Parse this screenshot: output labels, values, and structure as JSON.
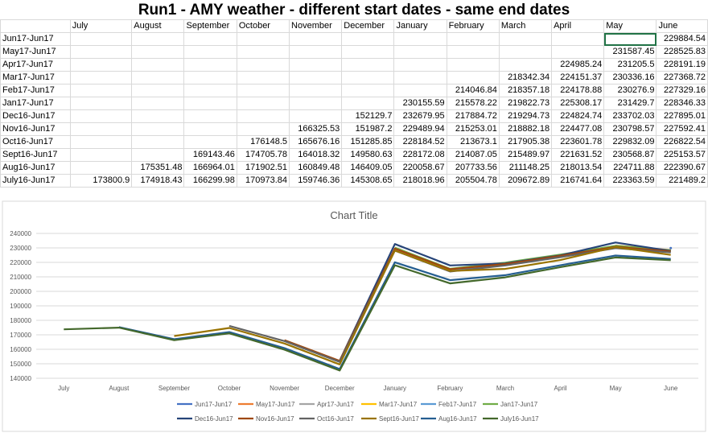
{
  "sheet": {
    "title": "Run1 - AMY weather - different start dates - same end dates",
    "column_headers": [
      "",
      "July",
      "August",
      "September",
      "October",
      "November",
      "December",
      "January",
      "February",
      "March",
      "April",
      "May",
      "June"
    ],
    "rows": [
      {
        "label": "Jun17-Jun17",
        "cells": [
          "",
          "",
          "",
          "",
          "",
          "",
          "",
          "",
          "",
          "",
          "",
          "229884.54"
        ]
      },
      {
        "label": "May17-Jun17",
        "cells": [
          "",
          "",
          "",
          "",
          "",
          "",
          "",
          "",
          "",
          "",
          "231587.45",
          "228525.83"
        ]
      },
      {
        "label": "Apr17-Jun17",
        "cells": [
          "",
          "",
          "",
          "",
          "",
          "",
          "",
          "",
          "",
          "224985.24",
          "231205.5",
          "228191.19"
        ]
      },
      {
        "label": "Mar17-Jun17",
        "cells": [
          "",
          "",
          "",
          "",
          "",
          "",
          "",
          "",
          "218342.34",
          "224151.37",
          "230336.16",
          "227368.72"
        ]
      },
      {
        "label": "Feb17-Jun17",
        "cells": [
          "",
          "",
          "",
          "",
          "",
          "",
          "",
          "214046.84",
          "218357.18",
          "224178.88",
          "230276.9",
          "227329.16"
        ]
      },
      {
        "label": "Jan17-Jun17",
        "cells": [
          "",
          "",
          "",
          "",
          "",
          "",
          "230155.59",
          "215578.22",
          "219822.73",
          "225308.17",
          "231429.7",
          "228346.33"
        ]
      },
      {
        "label": "Dec16-Jun17",
        "cells": [
          "",
          "",
          "",
          "",
          "",
          "152129.7",
          "232679.95",
          "217884.72",
          "219294.73",
          "224824.74",
          "233702.03",
          "227895.01"
        ]
      },
      {
        "label": "Nov16-Jun17",
        "cells": [
          "",
          "",
          "",
          "",
          "166325.53",
          "151987.2",
          "229489.94",
          "215253.01",
          "218882.18",
          "224477.08",
          "230798.57",
          "227592.41"
        ]
      },
      {
        "label": "Oct16-Jun17",
        "cells": [
          "",
          "",
          "",
          "176148.5",
          "165676.16",
          "151285.85",
          "228184.52",
          "213673.1",
          "217905.38",
          "223601.78",
          "229832.09",
          "226822.54"
        ]
      },
      {
        "label": "Sept16-Jun17",
        "cells": [
          "",
          "",
          "169143.46",
          "174705.78",
          "164018.32",
          "149580.63",
          "228172.08",
          "214087.05",
          "215489.97",
          "221631.52",
          "230568.87",
          "225153.57"
        ]
      },
      {
        "label": "Aug16-Jun17",
        "cells": [
          "",
          "175351.48",
          "166964.01",
          "171902.51",
          "160849.48",
          "146409.05",
          "220058.67",
          "207733.56",
          "211148.25",
          "218013.54",
          "224711.88",
          "222390.67"
        ]
      },
      {
        "label": "July16-Jun17",
        "cells": [
          "173800.9",
          "174918.43",
          "166299.98",
          "170973.84",
          "159746.36",
          "145308.65",
          "218018.96",
          "205504.78",
          "209672.89",
          "216741.64",
          "223363.59",
          "221489.2"
        ]
      }
    ]
  },
  "chart_data": {
    "type": "line",
    "title": "Chart Title",
    "xlabel": "",
    "ylabel": "",
    "ylim": [
      140000,
      240000
    ],
    "yticks": [
      "140000",
      "150000",
      "160000",
      "170000",
      "180000",
      "190000",
      "200000",
      "210000",
      "220000",
      "230000",
      "240000"
    ],
    "grid": true,
    "legend_position": "bottom",
    "categories": [
      "July",
      "August",
      "September",
      "October",
      "November",
      "December",
      "January",
      "February",
      "March",
      "April",
      "May",
      "June"
    ],
    "series": [
      {
        "name": "Jun17-Jun17",
        "color": "#4472c4",
        "values": [
          null,
          null,
          null,
          null,
          null,
          null,
          null,
          null,
          null,
          null,
          null,
          229884.54
        ]
      },
      {
        "name": "May17-Jun17",
        "color": "#ed7d31",
        "values": [
          null,
          null,
          null,
          null,
          null,
          null,
          null,
          null,
          null,
          null,
          231587.45,
          228525.83
        ]
      },
      {
        "name": "Apr17-Jun17",
        "color": "#a5a5a5",
        "values": [
          null,
          null,
          null,
          null,
          null,
          null,
          null,
          null,
          null,
          224985.24,
          231205.5,
          228191.19
        ]
      },
      {
        "name": "Mar17-Jun17",
        "color": "#ffc000",
        "values": [
          null,
          null,
          null,
          null,
          null,
          null,
          null,
          null,
          218342.34,
          224151.37,
          230336.16,
          227368.72
        ]
      },
      {
        "name": "Feb17-Jun17",
        "color": "#5b9bd5",
        "values": [
          null,
          null,
          null,
          null,
          null,
          null,
          null,
          214046.84,
          218357.18,
          224178.88,
          230276.9,
          227329.16
        ]
      },
      {
        "name": "Jan17-Jun17",
        "color": "#70ad47",
        "values": [
          null,
          null,
          null,
          null,
          null,
          null,
          230155.59,
          215578.22,
          219822.73,
          225308.17,
          231429.7,
          228346.33
        ]
      },
      {
        "name": "Dec16-Jun17",
        "color": "#264478",
        "values": [
          null,
          null,
          null,
          null,
          null,
          152129.7,
          232679.95,
          217884.72,
          219294.73,
          224824.74,
          233702.03,
          227895.01
        ]
      },
      {
        "name": "Nov16-Jun17",
        "color": "#9e480e",
        "values": [
          null,
          null,
          null,
          null,
          166325.53,
          151987.2,
          229489.94,
          215253.01,
          218882.18,
          224477.08,
          230798.57,
          227592.41
        ]
      },
      {
        "name": "Oct16-Jun17",
        "color": "#636363",
        "values": [
          null,
          null,
          null,
          176148.5,
          165676.16,
          151285.85,
          228184.52,
          213673.1,
          217905.38,
          223601.78,
          229832.09,
          226822.54
        ]
      },
      {
        "name": "Sept16-Jun17",
        "color": "#997300",
        "values": [
          null,
          null,
          169143.46,
          174705.78,
          164018.32,
          149580.63,
          228172.08,
          214087.05,
          215489.97,
          221631.52,
          230568.87,
          225153.57
        ]
      },
      {
        "name": "Aug16-Jun17",
        "color": "#255e91",
        "values": [
          null,
          175351.48,
          166964.01,
          171902.51,
          160849.48,
          146409.05,
          220058.67,
          207733.56,
          211148.25,
          218013.54,
          224711.88,
          222390.67
        ]
      },
      {
        "name": "July16-Jun17",
        "color": "#43682b",
        "values": [
          173800.9,
          174918.43,
          166299.98,
          170973.84,
          159746.36,
          145308.65,
          218018.96,
          205504.78,
          209672.89,
          216741.64,
          223363.59,
          221489.2
        ]
      }
    ]
  }
}
